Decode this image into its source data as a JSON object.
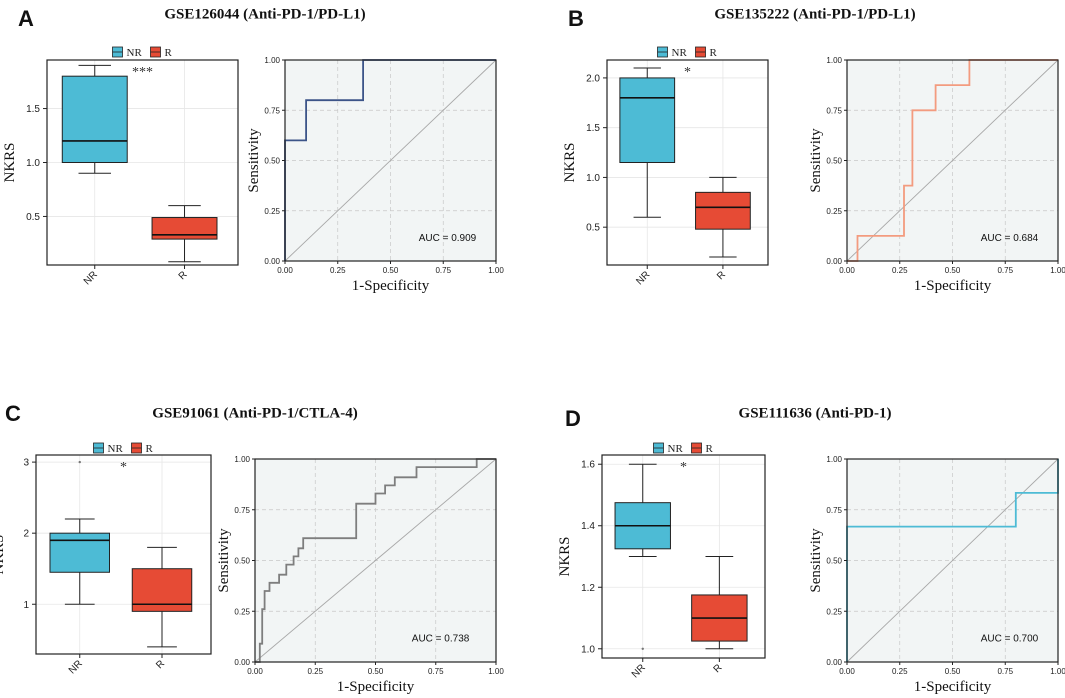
{
  "colors": {
    "nr": "#4dbbd5",
    "r": "#e64b35",
    "panel_bg": "#f2f5f5",
    "grid": "#c8c8c8",
    "diag": "#a8a8a8"
  },
  "legend": {
    "nr": "NR",
    "r": "R"
  },
  "chart_data": [
    {
      "panel": "A",
      "title": "GSE126044 (Anti-PD-1/PD-L1)",
      "boxplot": {
        "type": "box",
        "ylabel": "NKRS",
        "categories": [
          "NR",
          "R"
        ],
        "ylim": [
          0.05,
          1.95
        ],
        "yticks": [
          0.5,
          1.0,
          1.5
        ],
        "ytick_labels": [
          "0.5",
          "1.0",
          "1.5"
        ],
        "significance": "***",
        "groups": [
          {
            "name": "NR",
            "min": 0.9,
            "q1": 1.0,
            "median": 1.2,
            "q3": 1.8,
            "max": 1.9,
            "outliers": []
          },
          {
            "name": "R",
            "min": 0.08,
            "q1": 0.29,
            "median": 0.33,
            "q3": 0.49,
            "max": 0.6,
            "outliers": []
          }
        ]
      },
      "roc": {
        "type": "line",
        "xlabel": "1-Specificity",
        "ylabel": "Sensitivity",
        "ticks": [
          "0.00",
          "0.25",
          "0.50",
          "0.75",
          "1.00"
        ],
        "line_color": "#3c5488",
        "auc_label": "AUC = 0.909",
        "x": [
          0,
          0,
          0.1,
          0.1,
          0.37,
          0.37,
          1
        ],
        "y": [
          0,
          0.6,
          0.6,
          0.8,
          0.8,
          1,
          1
        ]
      }
    },
    {
      "panel": "B",
      "title": "GSE135222 (Anti-PD-1/PD-L1)",
      "boxplot": {
        "type": "box",
        "ylabel": "NKRS",
        "categories": [
          "NR",
          "R"
        ],
        "ylim": [
          0.12,
          2.18
        ],
        "yticks": [
          0.5,
          1.0,
          1.5,
          2.0
        ],
        "ytick_labels": [
          "0.5",
          "1.0",
          "1.5",
          "2.0"
        ],
        "significance": "*",
        "groups": [
          {
            "name": "NR",
            "min": 0.6,
            "q1": 1.15,
            "median": 1.8,
            "q3": 2.0,
            "max": 2.1,
            "outliers": []
          },
          {
            "name": "R",
            "min": 0.2,
            "q1": 0.48,
            "median": 0.7,
            "q3": 0.85,
            "max": 1.0,
            "outliers": []
          }
        ]
      },
      "roc": {
        "type": "line",
        "xlabel": "1-Specificity",
        "ylabel": "Sensitivity",
        "ticks": [
          "0.00",
          "0.25",
          "0.50",
          "0.75",
          "1.00"
        ],
        "line_color": "#f39b7f",
        "auc_label": "AUC = 0.684",
        "x": [
          0,
          0.05,
          0.05,
          0.27,
          0.27,
          0.31,
          0.31,
          0.42,
          0.42,
          0.58,
          0.58,
          1
        ],
        "y": [
          0,
          0,
          0.125,
          0.125,
          0.375,
          0.375,
          0.75,
          0.75,
          0.875,
          0.875,
          1,
          1
        ]
      }
    },
    {
      "panel": "C",
      "title": "GSE91061 (Anti-PD-1/CTLA-4)",
      "boxplot": {
        "type": "box",
        "ylabel": "NKRS",
        "categories": [
          "NR",
          "R"
        ],
        "ylim": [
          0.3,
          3.1
        ],
        "yticks": [
          1,
          2,
          3
        ],
        "ytick_labels": [
          "1",
          "2",
          "3"
        ],
        "significance": "*",
        "groups": [
          {
            "name": "NR",
            "min": 1.0,
            "q1": 1.45,
            "median": 1.9,
            "q3": 2.0,
            "max": 2.2,
            "outliers": [
              3.0
            ]
          },
          {
            "name": "R",
            "min": 0.4,
            "q1": 0.9,
            "median": 1.0,
            "q3": 1.5,
            "max": 1.8,
            "outliers": []
          }
        ]
      },
      "roc": {
        "type": "line",
        "xlabel": "1-Specificity",
        "ylabel": "Sensitivity",
        "ticks": [
          "0.00",
          "0.25",
          "0.50",
          "0.75",
          "1.00"
        ],
        "line_color": "#7e7e7e",
        "auc_label": "AUC = 0.738",
        "x": [
          0,
          0.02,
          0.02,
          0.03,
          0.03,
          0.04,
          0.04,
          0.06,
          0.06,
          0.1,
          0.1,
          0.13,
          0.13,
          0.16,
          0.16,
          0.18,
          0.18,
          0.2,
          0.2,
          0.25,
          0.25,
          0.42,
          0.42,
          0.5,
          0.5,
          0.54,
          0.54,
          0.58,
          0.58,
          0.62,
          0.62,
          0.67,
          0.67,
          0.92,
          0.92,
          1
        ],
        "y": [
          0,
          0,
          0.09,
          0.09,
          0.26,
          0.26,
          0.35,
          0.35,
          0.39,
          0.39,
          0.43,
          0.43,
          0.48,
          0.48,
          0.52,
          0.52,
          0.56,
          0.56,
          0.61,
          0.61,
          0.61,
          0.61,
          0.78,
          0.78,
          0.83,
          0.83,
          0.87,
          0.87,
          0.91,
          0.91,
          0.91,
          0.91,
          0.96,
          0.96,
          1,
          1
        ]
      }
    },
    {
      "panel": "D",
      "title": "GSE111636 (Anti-PD-1)",
      "boxplot": {
        "type": "box",
        "ylabel": "NKRS",
        "categories": [
          "NR",
          "R"
        ],
        "ylim": [
          0.97,
          1.63
        ],
        "yticks": [
          1.0,
          1.2,
          1.4,
          1.6
        ],
        "ytick_labels": [
          "1.0",
          "1.2",
          "1.4",
          "1.6"
        ],
        "significance": "*",
        "groups": [
          {
            "name": "NR",
            "min": 1.3,
            "q1": 1.325,
            "median": 1.4,
            "q3": 1.475,
            "max": 1.6,
            "outliers": [
              1.0
            ]
          },
          {
            "name": "R",
            "min": 1.0,
            "q1": 1.025,
            "median": 1.1,
            "q3": 1.175,
            "max": 1.3,
            "outliers": []
          }
        ]
      },
      "roc": {
        "type": "line",
        "xlabel": "1-Specificity",
        "ylabel": "Sensitivity",
        "ticks": [
          "0.00",
          "0.25",
          "0.50",
          "0.75",
          "1.00"
        ],
        "line_color": "#4dbbd5",
        "auc_label": "AUC = 0.700",
        "x": [
          0,
          0,
          0.8,
          0.8,
          1,
          1
        ],
        "y": [
          0,
          0.667,
          0.667,
          0.833,
          0.833,
          1
        ]
      }
    }
  ]
}
